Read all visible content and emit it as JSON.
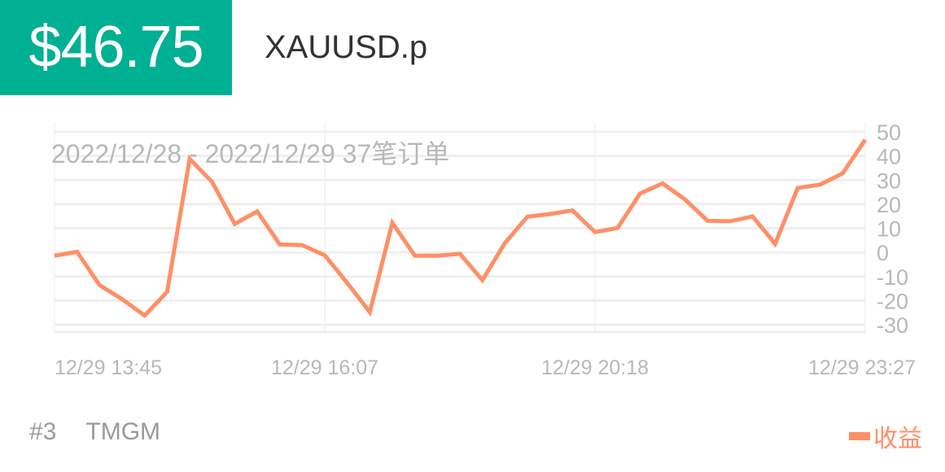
{
  "header": {
    "price": "$46.75",
    "symbol": "XAUUSD.p"
  },
  "footer": {
    "rank": "#3",
    "broker": "TMGM"
  },
  "colors": {
    "accent": "#00b092",
    "series": "#ff8f66",
    "axis_text": "#b8b8b8",
    "grid": "#efefef"
  },
  "chart_data": {
    "type": "line",
    "annotation": "2022/12/28 - 2022/12/29  37笔订单",
    "x_tick_labels": [
      "12/29 13:45",
      "12/29 16:07",
      "12/29 20:18",
      "12/29 23:27"
    ],
    "y_ticks": [
      50,
      40,
      30,
      20,
      10,
      0,
      -10,
      -20,
      -30
    ],
    "ylim": [
      -30,
      50
    ],
    "grid": true,
    "legend": "bottom-right",
    "y_axis_position": "right",
    "series": [
      {
        "name": "收益",
        "values": [
          -1.4,
          0.2,
          -13.6,
          -19.4,
          -26.2,
          -16.4,
          38.8,
          29.2,
          11.8,
          17.0,
          3.3,
          3.0,
          -1.2,
          -12.7,
          -24.8,
          12.3,
          -1.4,
          -1.4,
          -0.6,
          -11.5,
          3.9,
          14.8,
          15.9,
          17.4,
          8.4,
          10.1,
          24.4,
          28.6,
          21.9,
          13.1,
          12.9,
          14.9,
          3.5,
          26.7,
          28.1,
          32.8,
          46.75
        ]
      }
    ]
  }
}
